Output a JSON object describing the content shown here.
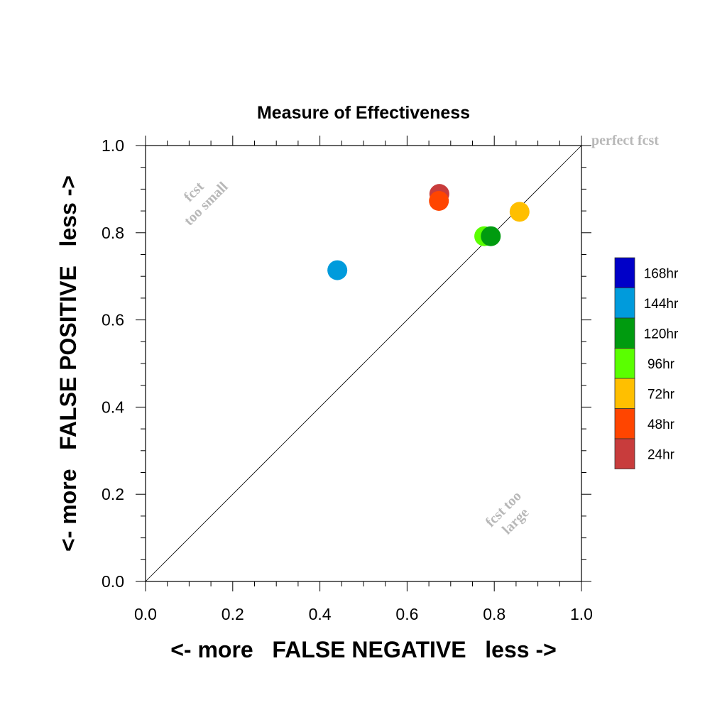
{
  "chart_data": {
    "type": "scatter",
    "title": "Measure of Effectiveness",
    "xlabel": "<- more   FALSE NEGATIVE   less ->",
    "ylabel": "<- more   FALSE POSITIVE   less ->",
    "xlim": [
      0,
      1
    ],
    "ylim": [
      0,
      1
    ],
    "xticks": [
      "0.0",
      "0.2",
      "0.4",
      "0.6",
      "0.8",
      "1.0"
    ],
    "yticks": [
      "0.0",
      "0.2",
      "0.4",
      "0.6",
      "0.8",
      "1.0"
    ],
    "grid": false,
    "diagonal_line": true,
    "annotations": {
      "perfect": "perfect fcst",
      "too_small_1": "fcst",
      "too_small_2": "too small",
      "too_large_1": "fcst too",
      "too_large_2": "large"
    },
    "legend_position": "right",
    "series": [
      {
        "name": "24hr",
        "color": "#c83c3c",
        "x": [
          0.674
        ],
        "y": [
          0.889
        ]
      },
      {
        "name": "48hr",
        "color": "#ff4500",
        "x": [
          0.673
        ],
        "y": [
          0.873
        ]
      },
      {
        "name": "72hr",
        "color": "#ffbf00",
        "x": [
          0.858
        ],
        "y": [
          0.848
        ]
      },
      {
        "name": "96hr",
        "color": "#5aff00",
        "x": [
          0.777
        ],
        "y": [
          0.792
        ]
      },
      {
        "name": "120hr",
        "color": "#009b0f",
        "x": [
          0.792
        ],
        "y": [
          0.792
        ]
      },
      {
        "name": "144hr",
        "color": "#009bdc",
        "x": [
          0.44
        ],
        "y": [
          0.714
        ]
      },
      {
        "name": "168hr",
        "color": "#0000c8",
        "x": [],
        "y": []
      }
    ],
    "legend_order": [
      "168hr",
      "144hr",
      "120hr",
      "96hr",
      "72hr",
      "48hr",
      "24hr"
    ]
  }
}
